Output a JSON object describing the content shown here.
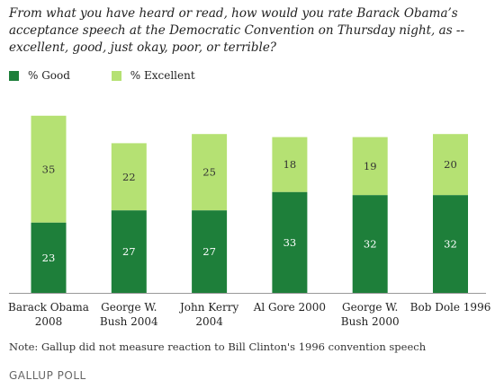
{
  "header": {
    "title": "From what you have heard or read, how would you rate Barack Obama’s acceptance speech at the Democratic Convention on Thursday night, as -- excellent, good, just okay, poor, or terrible?"
  },
  "legend": {
    "good_label": "% Good",
    "excellent_label": "% Excellent"
  },
  "colors": {
    "good": "#1e7f3a",
    "excellent": "#b5e173"
  },
  "chart_data": {
    "type": "bar",
    "stacked": true,
    "title": "From what you have heard or read, how would you rate Barack Obama’s acceptance speech at the Democratic Convention on Thursday night, as -- excellent, good, just okay, poor, or terrible?",
    "categories": [
      [
        "Barack Obama",
        "2008"
      ],
      [
        "George W.",
        "Bush 2004"
      ],
      [
        "John Kerry",
        "2004"
      ],
      [
        "Al Gore 2000"
      ],
      [
        "George W.",
        "Bush 2000"
      ],
      [
        "Bob Dole 1996"
      ]
    ],
    "series": [
      {
        "name": "% Good",
        "values": [
          23,
          27,
          27,
          33,
          32,
          32
        ]
      },
      {
        "name": "% Excellent",
        "values": [
          35,
          22,
          25,
          18,
          19,
          20
        ]
      }
    ],
    "ylim": [
      0,
      60
    ],
    "grid": false,
    "legend_position": "top-left"
  },
  "footer": {
    "note": "Note: Gallup did not measure reaction to Bill Clinton's 1996 convention speech",
    "logo_main": "GALLUP",
    "logo_sub": "POLL"
  }
}
